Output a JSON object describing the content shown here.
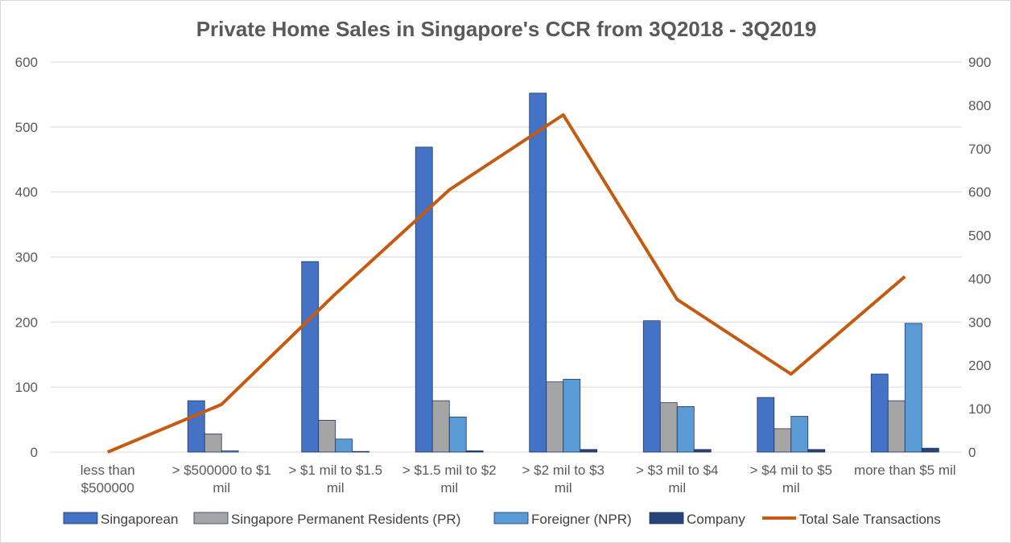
{
  "chart_data": {
    "type": "bar",
    "title": "Private Home Sales in Singapore's CCR from 3Q2018 - 3Q2019",
    "categories": [
      [
        "less than",
        "$500000"
      ],
      [
        "> $500000 to $1",
        "mil"
      ],
      [
        "> $1 mil to $1.5",
        "mil"
      ],
      [
        "> $1.5 mil to $2",
        "mil"
      ],
      [
        "> $2 mil to $3",
        "mil"
      ],
      [
        "> $3 mil to $4",
        "mil"
      ],
      [
        "> $4 mil to $5",
        "mil"
      ],
      [
        "more than $5 mil"
      ]
    ],
    "series": [
      {
        "name": "Singaporean",
        "type": "bar",
        "axis": "left",
        "color": "#4472c4",
        "values": [
          0,
          79,
          293,
          469,
          552,
          202,
          84,
          120
        ]
      },
      {
        "name": "Singapore Permanent Residents (PR)",
        "type": "bar",
        "axis": "left",
        "color": "#a5a5a5",
        "values": [
          0,
          28,
          49,
          79,
          108,
          76,
          36,
          79
        ]
      },
      {
        "name": "Foreigner (NPR)",
        "type": "bar",
        "axis": "left",
        "color": "#5b9bd5",
        "values": [
          0,
          2,
          20,
          54,
          112,
          70,
          55,
          198
        ]
      },
      {
        "name": "Company",
        "type": "bar",
        "axis": "left",
        "color": "#264478",
        "values": [
          0,
          0,
          1,
          2,
          4,
          4,
          4,
          6
        ]
      },
      {
        "name": "Total Sale Transactions",
        "type": "line",
        "axis": "right",
        "color": "#c55a11",
        "values": [
          0,
          110,
          365,
          605,
          778,
          352,
          180,
          405
        ]
      }
    ],
    "y_left": {
      "ylim": [
        0,
        600
      ],
      "ticks": [
        "0",
        "100",
        "200",
        "300",
        "400",
        "500",
        "600"
      ]
    },
    "y_right": {
      "ylim": [
        0,
        900
      ],
      "ticks": [
        "0",
        "100",
        "200",
        "300",
        "400",
        "500",
        "600",
        "700",
        "800",
        "900"
      ]
    },
    "grid": true,
    "legend_position": "bottom"
  }
}
